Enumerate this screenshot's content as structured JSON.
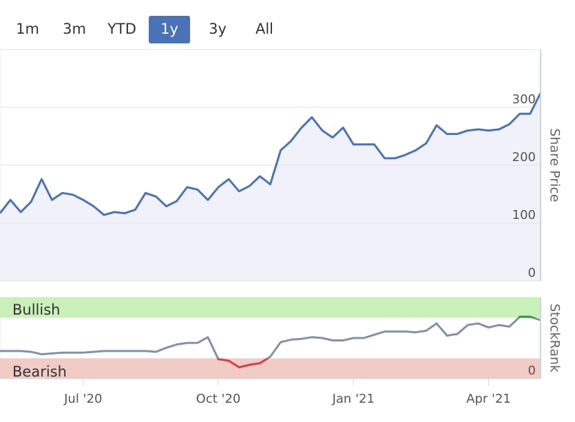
{
  "range_selector": {
    "buttons": [
      "1m",
      "3m",
      "YTD",
      "1y",
      "3y",
      "All"
    ],
    "selected": 3
  },
  "chart_data": [
    {
      "type": "line",
      "area": true,
      "y_label": "Share Price",
      "color": "#4a72b8",
      "fill": "#f1f2f9",
      "ylim": [
        0,
        400
      ],
      "yticks": [
        0,
        100,
        200,
        300
      ],
      "grid": true,
      "values": [
        117,
        140,
        119,
        137,
        176,
        140,
        152,
        149,
        140,
        129,
        114,
        119,
        117,
        123,
        152,
        146,
        129,
        138,
        162,
        158,
        140,
        162,
        176,
        155,
        164,
        181,
        167,
        226,
        242,
        265,
        283,
        260,
        248,
        265,
        236,
        236,
        236,
        212,
        212,
        218,
        226,
        238,
        269,
        254,
        254,
        260,
        262,
        260,
        262,
        271,
        289,
        289,
        325
      ]
    },
    {
      "type": "line",
      "y_label": "StockRank",
      "color": "#8191a8",
      "ylim": [
        0,
        100
      ],
      "yticks": [
        0
      ],
      "bands": [
        {
          "name": "Bullish",
          "from": 75,
          "to": 100,
          "color": "#c8f0b8",
          "line_color": "#2a9a2a",
          "text_color": "#2a8a2a"
        },
        {
          "name": "Bearish",
          "from": 0,
          "to": 25,
          "color": "#f1cbc6",
          "line_color": "#d0454a",
          "text_color": "#c8454a"
        }
      ],
      "categories": [
        null,
        null,
        null,
        null,
        null,
        null,
        null,
        null,
        "Jul '20",
        null,
        null,
        null,
        null,
        null,
        null,
        null,
        null,
        null,
        null,
        null,
        null,
        "Oct '20",
        null,
        null,
        null,
        null,
        null,
        null,
        null,
        null,
        null,
        null,
        null,
        null,
        "Jan '21",
        null,
        null,
        null,
        null,
        null,
        null,
        null,
        null,
        null,
        null,
        null,
        null,
        "Apr '21",
        null,
        null,
        null,
        null,
        null
      ],
      "values": [
        34,
        34,
        34,
        33,
        30,
        31,
        32,
        32,
        32,
        33,
        34,
        34,
        34,
        34,
        34,
        33,
        38,
        42,
        44,
        44,
        51,
        24,
        22,
        14,
        17,
        19,
        27,
        45,
        48,
        49,
        51,
        50,
        47,
        47,
        50,
        50,
        54,
        58,
        58,
        58,
        57,
        59,
        68,
        53,
        55,
        66,
        68,
        63,
        66,
        64,
        76,
        76,
        72
      ]
    }
  ]
}
